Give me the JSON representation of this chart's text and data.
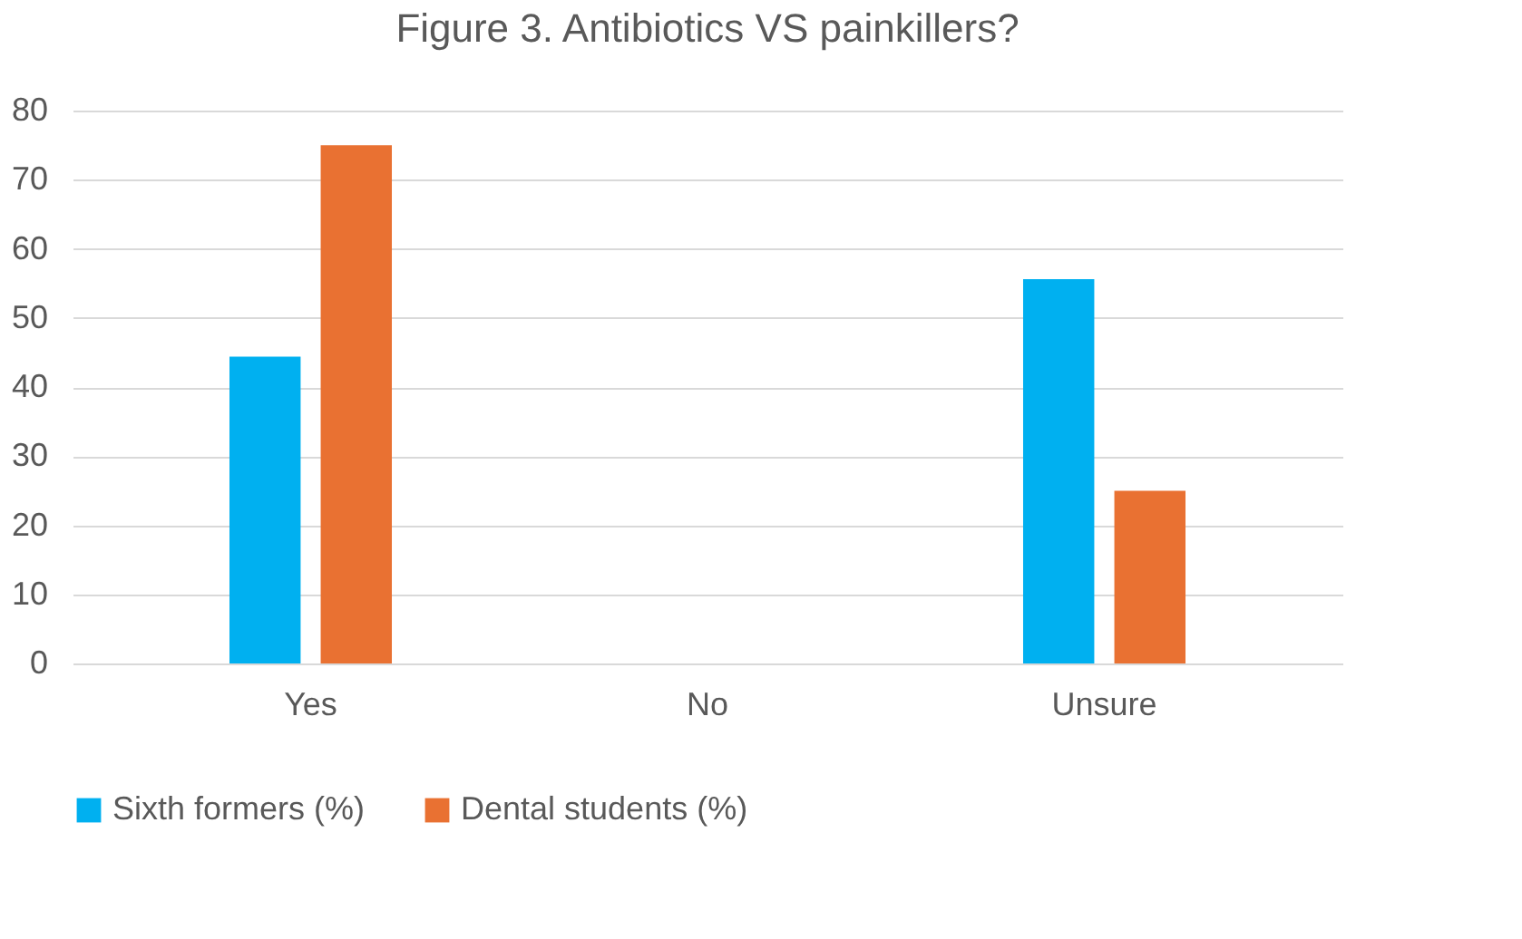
{
  "chart_data": {
    "type": "bar",
    "title": "Figure 3. Antibiotics VS painkillers?",
    "categories": [
      "Yes",
      "No",
      "Unsure"
    ],
    "series": [
      {
        "name": "Sixth formers (%)",
        "color": "#00b0f0",
        "values": [
          44.4,
          0,
          55.6
        ]
      },
      {
        "name": "Dental students (%)",
        "color": "#e97132",
        "values": [
          75,
          0,
          25
        ]
      }
    ],
    "ylim": [
      0,
      80
    ],
    "yticks": [
      0,
      10,
      20,
      30,
      40,
      50,
      60,
      70,
      80
    ],
    "grid": "y",
    "legend": "bottom"
  }
}
